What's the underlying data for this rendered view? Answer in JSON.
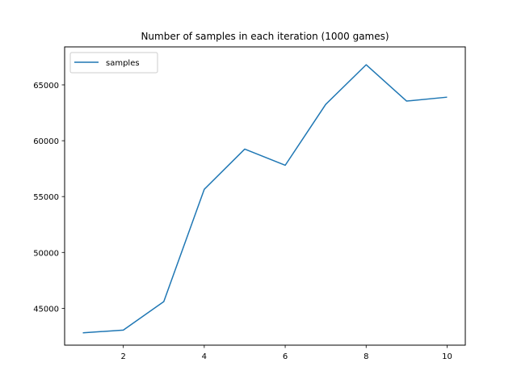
{
  "chart_data": {
    "type": "line",
    "title": "Number of samples in each iteration (1000 games)",
    "xlabel": "",
    "ylabel": "",
    "xlim": [
      0.55,
      10.45
    ],
    "ylim": [
      41700,
      68400
    ],
    "xticks": [
      2,
      4,
      6,
      8,
      10
    ],
    "yticks": [
      45000,
      50000,
      55000,
      60000,
      65000
    ],
    "grid": false,
    "legend_position": "top-left",
    "series": [
      {
        "name": "samples",
        "color": "#1f77b4",
        "x": [
          1,
          2,
          3,
          4,
          5,
          6,
          7,
          8,
          9,
          10
        ],
        "y": [
          42800,
          43050,
          45600,
          55650,
          59250,
          57800,
          63250,
          66800,
          63550,
          63900
        ]
      }
    ]
  }
}
